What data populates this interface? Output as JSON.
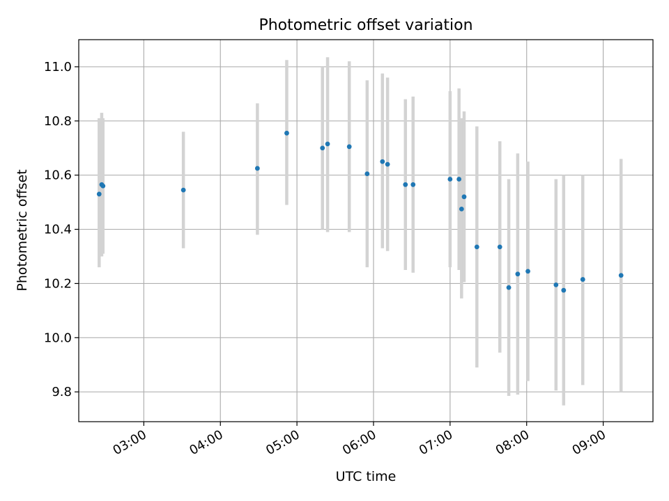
{
  "chart_data": {
    "type": "scatter",
    "title": "Photometric offset variation",
    "xlabel": "UTC time",
    "ylabel": "Photometric offset",
    "xlim": [
      "02:09",
      "09:39"
    ],
    "ylim": [
      9.69,
      11.1
    ],
    "x_ticks": [
      "03:00",
      "04:00",
      "05:00",
      "06:00",
      "07:00",
      "08:00",
      "09:00"
    ],
    "y_ticks": [
      "9.8",
      "10.0",
      "10.2",
      "10.4",
      "10.6",
      "10.8",
      "11.0"
    ],
    "grid": true,
    "colors": {
      "point": "#1f77b4",
      "errorbar": "#d3d3d3",
      "grid": "#b0b0b0"
    },
    "points": [
      {
        "x": "02:25",
        "y": 10.53,
        "lo": 10.26,
        "hi": 10.81
      },
      {
        "x": "02:27",
        "y": 10.565,
        "lo": 10.3,
        "hi": 10.83
      },
      {
        "x": "02:28",
        "y": 10.56,
        "lo": 10.31,
        "hi": 10.81
      },
      {
        "x": "03:31",
        "y": 10.545,
        "lo": 10.33,
        "hi": 10.76
      },
      {
        "x": "04:29",
        "y": 10.625,
        "lo": 10.38,
        "hi": 10.865
      },
      {
        "x": "04:52",
        "y": 10.755,
        "lo": 10.49,
        "hi": 11.025
      },
      {
        "x": "05:20",
        "y": 10.7,
        "lo": 10.4,
        "hi": 11.0
      },
      {
        "x": "05:24",
        "y": 10.715,
        "lo": 10.39,
        "hi": 11.035
      },
      {
        "x": "05:41",
        "y": 10.705,
        "lo": 10.39,
        "hi": 11.02
      },
      {
        "x": "05:55",
        "y": 10.605,
        "lo": 10.26,
        "hi": 10.95
      },
      {
        "x": "06:07",
        "y": 10.65,
        "lo": 10.33,
        "hi": 10.975
      },
      {
        "x": "06:11",
        "y": 10.64,
        "lo": 10.32,
        "hi": 10.96
      },
      {
        "x": "06:25",
        "y": 10.565,
        "lo": 10.25,
        "hi": 10.88
      },
      {
        "x": "06:31",
        "y": 10.565,
        "lo": 10.24,
        "hi": 10.89
      },
      {
        "x": "07:00",
        "y": 10.585,
        "lo": 10.26,
        "hi": 10.91
      },
      {
        "x": "07:07",
        "y": 10.585,
        "lo": 10.25,
        "hi": 10.92
      },
      {
        "x": "07:09",
        "y": 10.475,
        "lo": 10.145,
        "hi": 10.81
      },
      {
        "x": "07:11",
        "y": 10.52,
        "lo": 10.205,
        "hi": 10.835
      },
      {
        "x": "07:21",
        "y": 10.335,
        "lo": 9.89,
        "hi": 10.78
      },
      {
        "x": "07:39",
        "y": 10.335,
        "lo": 9.945,
        "hi": 10.725
      },
      {
        "x": "07:46",
        "y": 10.185,
        "lo": 9.785,
        "hi": 10.585
      },
      {
        "x": "07:53",
        "y": 10.235,
        "lo": 9.79,
        "hi": 10.68
      },
      {
        "x": "08:01",
        "y": 10.245,
        "lo": 9.84,
        "hi": 10.65
      },
      {
        "x": "08:23",
        "y": 10.195,
        "lo": 9.805,
        "hi": 10.585
      },
      {
        "x": "08:29",
        "y": 10.175,
        "lo": 9.75,
        "hi": 10.6
      },
      {
        "x": "08:44",
        "y": 10.215,
        "lo": 9.825,
        "hi": 10.6
      },
      {
        "x": "09:14",
        "y": 10.23,
        "lo": 9.8,
        "hi": 10.66
      }
    ]
  }
}
